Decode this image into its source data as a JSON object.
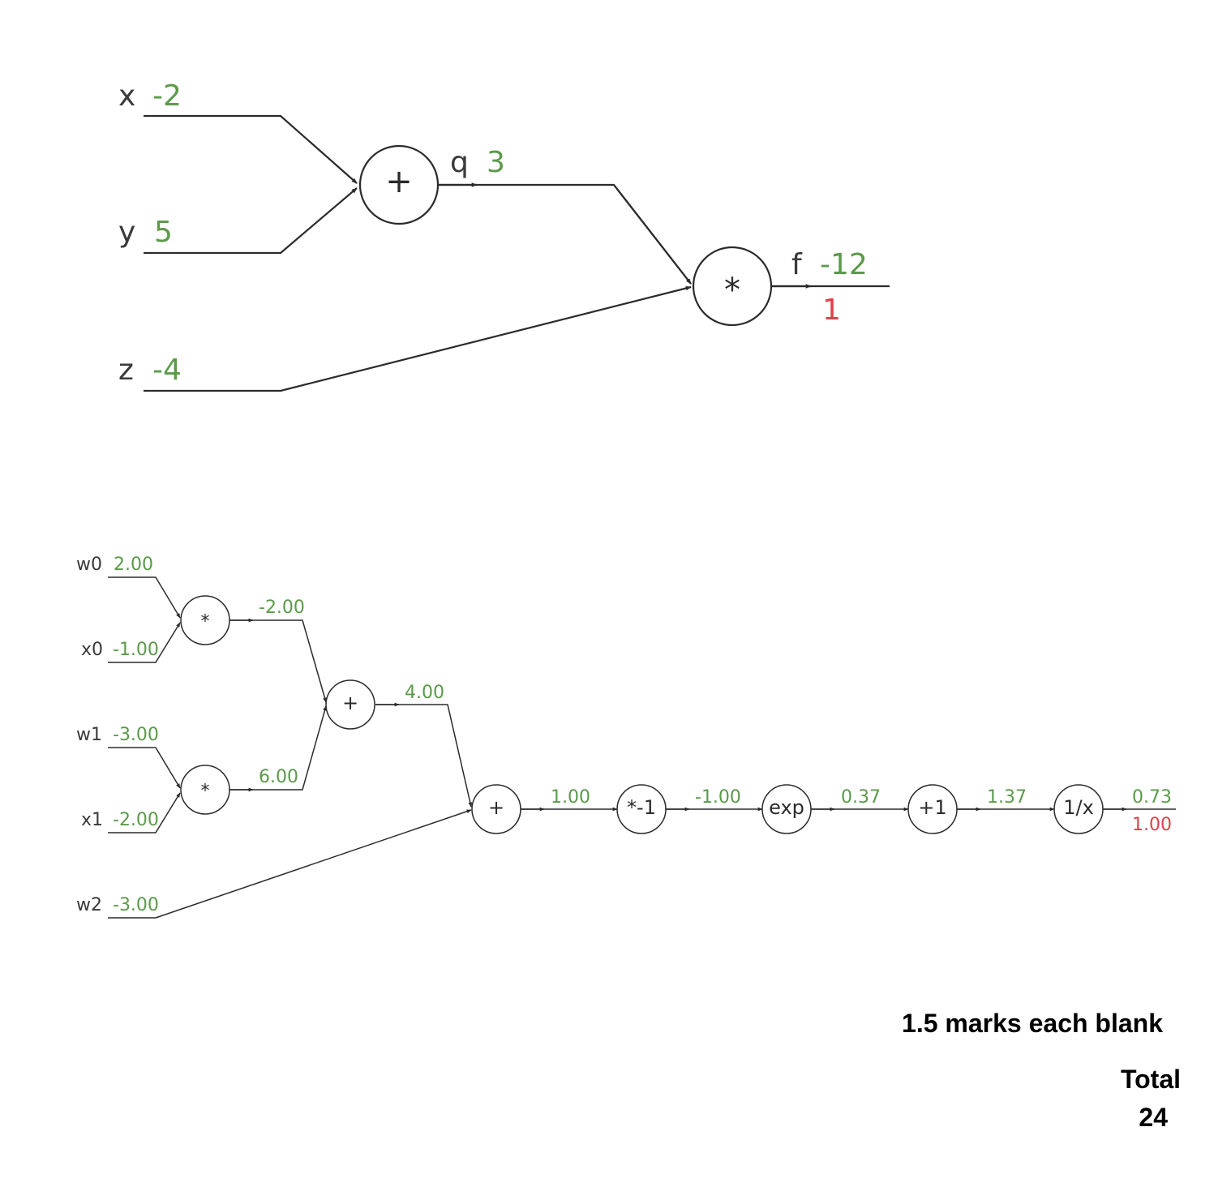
{
  "colors": {
    "forward_value": "#5b9a4a",
    "gradient_value": "#e0404a",
    "line": "#2b2b2b",
    "label": "#3a3a3a"
  },
  "graph1": {
    "inputs": [
      {
        "name": "x",
        "value": "-2"
      },
      {
        "name": "y",
        "value": "5"
      },
      {
        "name": "z",
        "value": "-4"
      }
    ],
    "nodes": {
      "add": {
        "op": "+"
      },
      "mul": {
        "op": "*"
      }
    },
    "q": {
      "name": "q",
      "value": "3"
    },
    "f": {
      "name": "f",
      "value": "-12",
      "gradient": "1"
    }
  },
  "graph2": {
    "inputs": [
      {
        "name": "w0",
        "value": "2.00"
      },
      {
        "name": "x0",
        "value": "-1.00"
      },
      {
        "name": "w1",
        "value": "-3.00"
      },
      {
        "name": "x1",
        "value": "-2.00"
      },
      {
        "name": "w2",
        "value": "-3.00"
      }
    ],
    "nodes": {
      "mul0": {
        "op": "*",
        "out": "-2.00"
      },
      "mul1": {
        "op": "*",
        "out": "6.00"
      },
      "add0": {
        "op": "+",
        "out": "4.00"
      },
      "add1": {
        "op": "+",
        "out": "1.00"
      },
      "neg": {
        "op": "*-1",
        "out": "-1.00"
      },
      "exp": {
        "op": "exp",
        "out": "0.37"
      },
      "plus1": {
        "op": "+1",
        "out": "1.37"
      },
      "recip": {
        "op": "1/x",
        "out": "0.73",
        "gradient": "1.00"
      }
    }
  },
  "captions": {
    "marks": "1.5 marks each blank",
    "total_label": "Total",
    "total_value": "24"
  }
}
